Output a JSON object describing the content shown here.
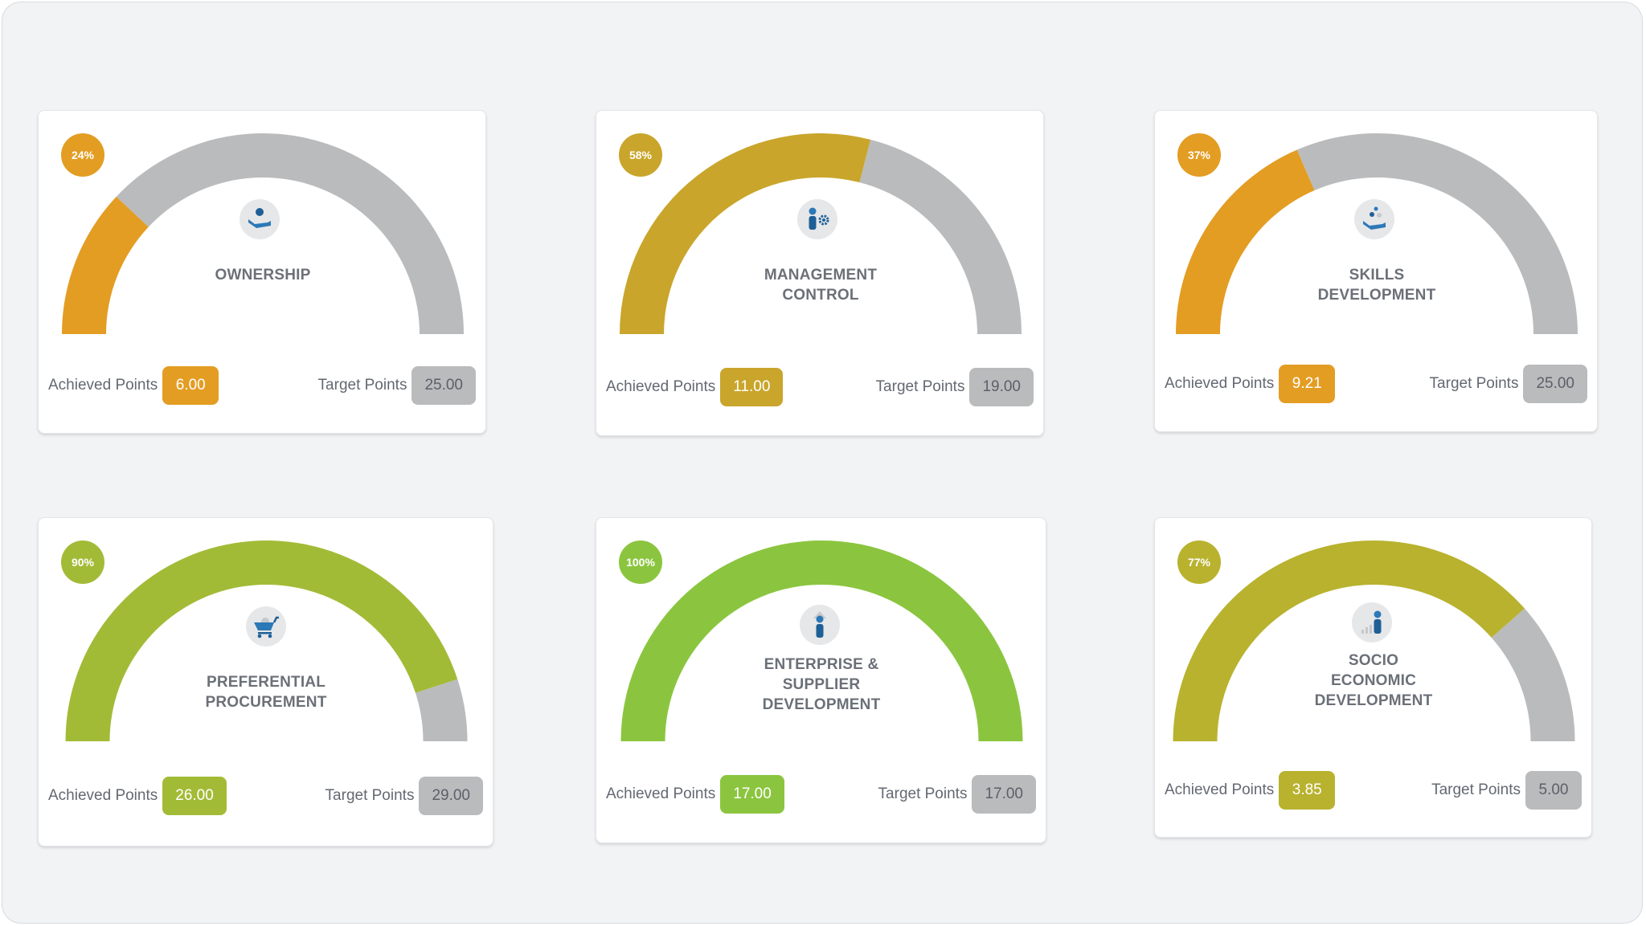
{
  "labels": {
    "achieved": "Achieved Points",
    "target": "Target Points"
  },
  "colors": {
    "remaining": "#babbbd",
    "frame_bg": "#f2f3f5",
    "icon_blue": "#1f5f97"
  },
  "cards": [
    {
      "title": "OWNERSHIP",
      "percent_label": "24%",
      "percent": 24,
      "achieved": "6.00",
      "target": "25.00",
      "color": "#e39d23",
      "icon": "hand-person-icon"
    },
    {
      "title": "MANAGEMENT\nCONTROL",
      "percent_label": "58%",
      "percent": 58,
      "achieved": "11.00",
      "target": "19.00",
      "color": "#c9a52b",
      "icon": "person-gear-icon"
    },
    {
      "title": "SKILLS\nDEVELOPMENT",
      "percent_label": "37%",
      "percent": 37,
      "achieved": "9.21",
      "target": "25.00",
      "color": "#e39d23",
      "icon": "hand-dots-icon"
    },
    {
      "title": "PREFERENTIAL\nPROCUREMENT",
      "percent_label": "90%",
      "percent": 90,
      "achieved": "26.00",
      "target": "29.00",
      "color": "#a2bb37",
      "icon": "shopping-cart-icon"
    },
    {
      "title": "ENTERPRISE &\nSUPPLIER\nDEVELOPMENT",
      "percent_label": "100%",
      "percent": 100,
      "achieved": "17.00",
      "target": "17.00",
      "color": "#8bc53f",
      "icon": "person-arrow-up-icon"
    },
    {
      "title": "SOCIO\nECONOMIC\nDEVELOPMENT",
      "percent_label": "77%",
      "percent": 77,
      "achieved": "3.85",
      "target": "5.00",
      "color": "#b8b22f",
      "icon": "person-bars-icon"
    }
  ],
  "chart_data": [
    {
      "type": "gauge",
      "title": "OWNERSHIP",
      "percent": 24,
      "achieved": 6.0,
      "target": 25.0,
      "range": [
        0,
        100
      ]
    },
    {
      "type": "gauge",
      "title": "MANAGEMENT CONTROL",
      "percent": 58,
      "achieved": 11.0,
      "target": 19.0,
      "range": [
        0,
        100
      ]
    },
    {
      "type": "gauge",
      "title": "SKILLS DEVELOPMENT",
      "percent": 37,
      "achieved": 9.21,
      "target": 25.0,
      "range": [
        0,
        100
      ]
    },
    {
      "type": "gauge",
      "title": "PREFERENTIAL PROCUREMENT",
      "percent": 90,
      "achieved": 26.0,
      "target": 29.0,
      "range": [
        0,
        100
      ]
    },
    {
      "type": "gauge",
      "title": "ENTERPRISE & SUPPLIER DEVELOPMENT",
      "percent": 100,
      "achieved": 17.0,
      "target": 17.0,
      "range": [
        0,
        100
      ]
    },
    {
      "type": "gauge",
      "title": "SOCIO ECONOMIC DEVELOPMENT",
      "percent": 77,
      "achieved": 3.85,
      "target": 5.0,
      "range": [
        0,
        100
      ]
    }
  ]
}
